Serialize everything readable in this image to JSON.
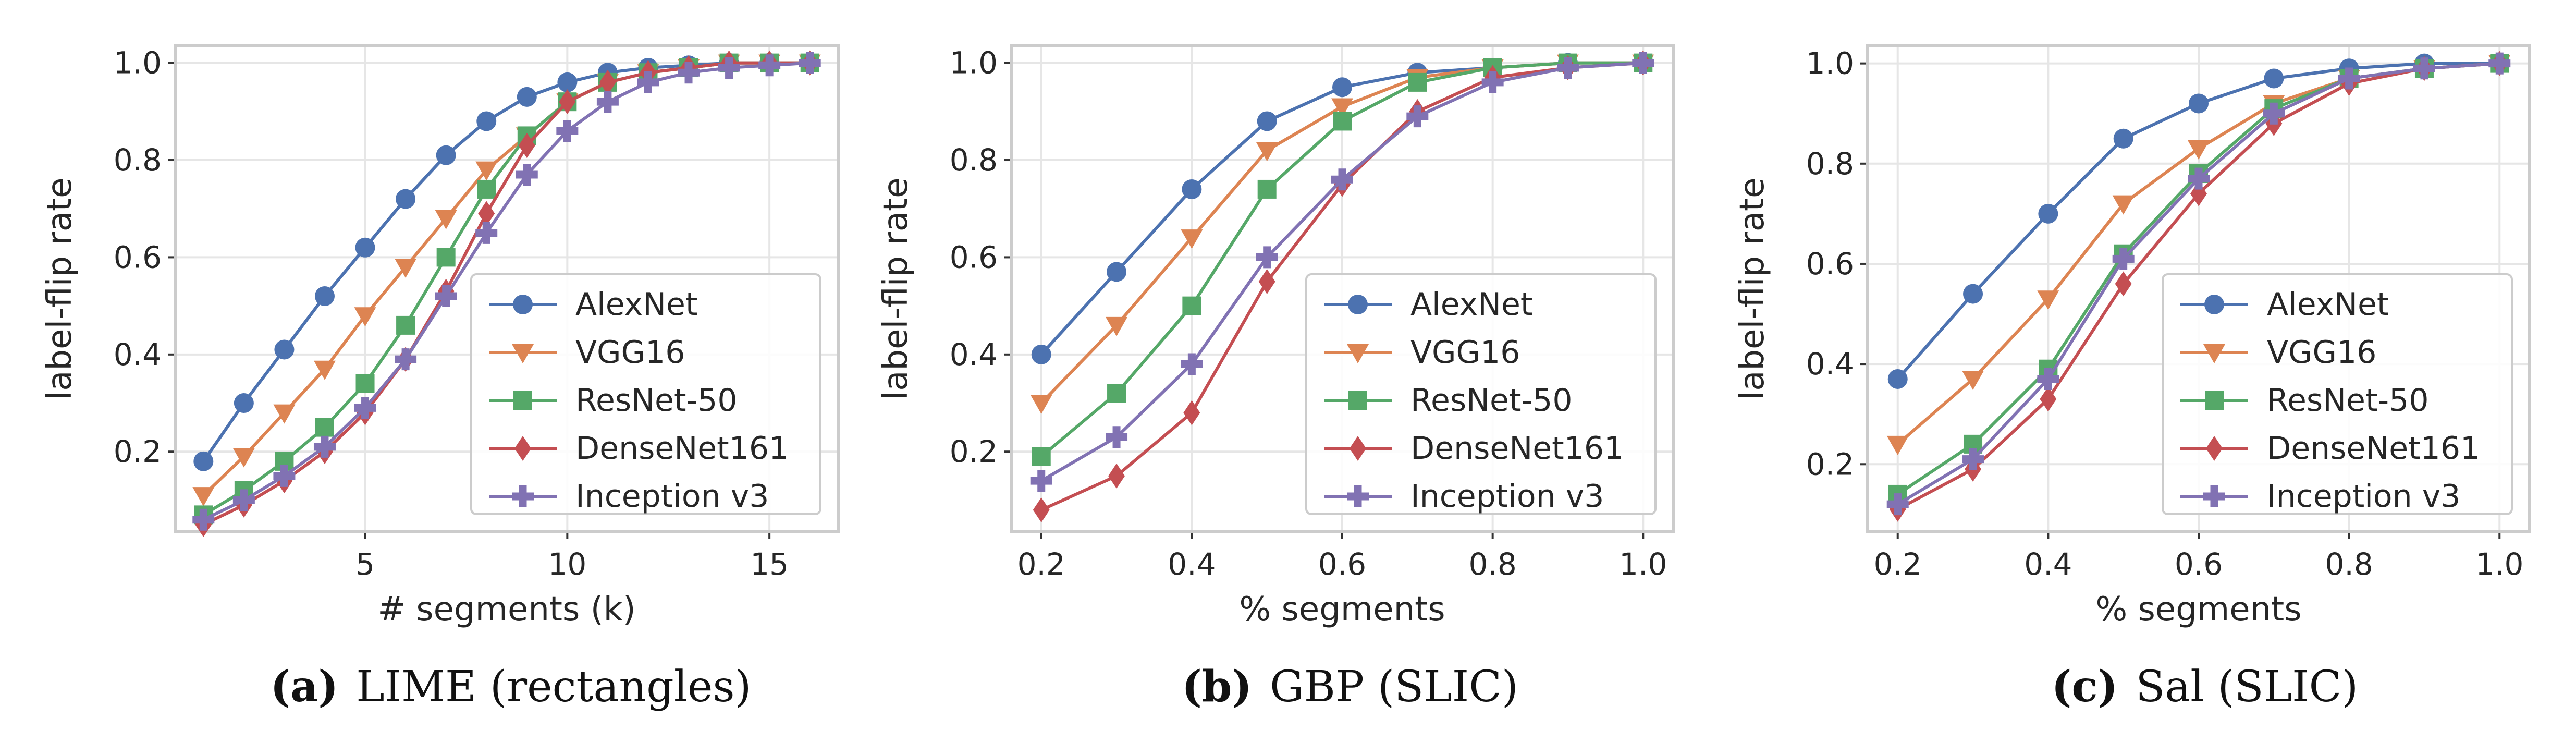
{
  "colors": {
    "AlexNet": "#4c72b0",
    "VGG16": "#dd8452",
    "ResNet-50": "#55a868",
    "DenseNet161": "#c44e52",
    "Inception v3": "#8172b3",
    "axes_frame": "#cccccc",
    "grid": "#e6e6e6"
  },
  "captions": [
    {
      "tag": "(a)",
      "text": "LIME (rectangles)"
    },
    {
      "tag": "(b)",
      "text": "GBP (SLIC)"
    },
    {
      "tag": "(c)",
      "text": "Sal (SLIC)"
    }
  ],
  "chart_data": [
    {
      "type": "line",
      "title": "",
      "xlabel": "# segments (k)",
      "ylabel": "label-flip rate",
      "xlim": [
        0.3,
        16.7
      ],
      "ylim": [
        0.035,
        1.035
      ],
      "xticks": [
        5,
        10,
        15
      ],
      "xtick_labels": [
        "5",
        "10",
        "15"
      ],
      "yticks": [
        0.2,
        0.4,
        0.6,
        0.8,
        1.0
      ],
      "ytick_labels": [
        "0.2",
        "0.4",
        "0.6",
        "0.8",
        "1.0"
      ],
      "grid": true,
      "legend_position": "lower-right",
      "x": [
        1,
        2,
        3,
        4,
        5,
        6,
        7,
        8,
        9,
        10,
        11,
        12,
        13,
        14,
        15,
        16
      ],
      "series": [
        {
          "name": "AlexNet",
          "marker": "circle",
          "values": [
            0.18,
            0.3,
            0.41,
            0.52,
            0.62,
            0.72,
            0.81,
            0.88,
            0.93,
            0.96,
            0.98,
            0.99,
            0.995,
            1.0,
            1.0,
            1.0
          ]
        },
        {
          "name": "VGG16",
          "marker": "triangle-down",
          "values": [
            0.11,
            0.19,
            0.28,
            0.37,
            0.48,
            0.58,
            0.68,
            0.78,
            0.85,
            0.92,
            0.96,
            0.98,
            0.99,
            1.0,
            1.0,
            1.0
          ]
        },
        {
          "name": "ResNet-50",
          "marker": "square",
          "values": [
            0.07,
            0.12,
            0.18,
            0.25,
            0.34,
            0.46,
            0.6,
            0.74,
            0.85,
            0.92,
            0.96,
            0.98,
            0.99,
            1.0,
            1.0,
            1.0
          ]
        },
        {
          "name": "DenseNet161",
          "marker": "diamond",
          "values": [
            0.05,
            0.09,
            0.14,
            0.2,
            0.28,
            0.39,
            0.53,
            0.69,
            0.83,
            0.92,
            0.96,
            0.98,
            0.99,
            1.0,
            1.0,
            1.0
          ]
        },
        {
          "name": "Inception v3",
          "marker": "plus",
          "values": [
            0.06,
            0.1,
            0.15,
            0.21,
            0.29,
            0.39,
            0.52,
            0.65,
            0.77,
            0.86,
            0.92,
            0.96,
            0.98,
            0.99,
            0.995,
            1.0
          ]
        }
      ]
    },
    {
      "type": "line",
      "title": "",
      "xlabel": "% segments",
      "ylabel": "label-flip rate",
      "xlim": [
        0.16,
        1.04
      ],
      "ylim": [
        0.035,
        1.035
      ],
      "xticks": [
        0.2,
        0.4,
        0.6,
        0.8,
        1.0
      ],
      "xtick_labels": [
        "0.2",
        "0.4",
        "0.6",
        "0.8",
        "1.0"
      ],
      "yticks": [
        0.2,
        0.4,
        0.6,
        0.8,
        1.0
      ],
      "ytick_labels": [
        "0.2",
        "0.4",
        "0.6",
        "0.8",
        "1.0"
      ],
      "grid": true,
      "legend_position": "lower-right",
      "x": [
        0.2,
        0.3,
        0.4,
        0.5,
        0.6,
        0.7,
        0.8,
        0.9,
        1.0
      ],
      "series": [
        {
          "name": "AlexNet",
          "marker": "circle",
          "values": [
            0.4,
            0.57,
            0.74,
            0.88,
            0.95,
            0.98,
            0.99,
            1.0,
            1.0
          ]
        },
        {
          "name": "VGG16",
          "marker": "triangle-down",
          "values": [
            0.3,
            0.46,
            0.64,
            0.82,
            0.91,
            0.97,
            0.99,
            1.0,
            1.0
          ]
        },
        {
          "name": "ResNet-50",
          "marker": "square",
          "values": [
            0.19,
            0.32,
            0.5,
            0.74,
            0.88,
            0.96,
            0.99,
            1.0,
            1.0
          ]
        },
        {
          "name": "DenseNet161",
          "marker": "diamond",
          "values": [
            0.08,
            0.15,
            0.28,
            0.55,
            0.75,
            0.9,
            0.97,
            0.99,
            1.0
          ]
        },
        {
          "name": "Inception v3",
          "marker": "plus",
          "values": [
            0.14,
            0.23,
            0.38,
            0.6,
            0.76,
            0.89,
            0.96,
            0.99,
            1.0
          ]
        }
      ]
    },
    {
      "type": "line",
      "title": "",
      "xlabel": "% segments",
      "ylabel": "label-flip rate",
      "xlim": [
        0.16,
        1.04
      ],
      "ylim": [
        0.065,
        1.035
      ],
      "xticks": [
        0.2,
        0.4,
        0.6,
        0.8,
        1.0
      ],
      "xtick_labels": [
        "0.2",
        "0.4",
        "0.6",
        "0.8",
        "1.0"
      ],
      "yticks": [
        0.2,
        0.4,
        0.6,
        0.8,
        1.0
      ],
      "ytick_labels": [
        "0.2",
        "0.4",
        "0.6",
        "0.8",
        "1.0"
      ],
      "grid": true,
      "legend_position": "lower-right",
      "x": [
        0.2,
        0.3,
        0.4,
        0.5,
        0.6,
        0.7,
        0.8,
        0.9,
        1.0
      ],
      "series": [
        {
          "name": "AlexNet",
          "marker": "circle",
          "values": [
            0.37,
            0.54,
            0.7,
            0.85,
            0.92,
            0.97,
            0.99,
            1.0,
            1.0
          ]
        },
        {
          "name": "VGG16",
          "marker": "triangle-down",
          "values": [
            0.24,
            0.37,
            0.53,
            0.72,
            0.83,
            0.92,
            0.97,
            0.99,
            1.0
          ]
        },
        {
          "name": "ResNet-50",
          "marker": "square",
          "values": [
            0.14,
            0.24,
            0.39,
            0.62,
            0.78,
            0.91,
            0.97,
            0.99,
            1.0
          ]
        },
        {
          "name": "DenseNet161",
          "marker": "diamond",
          "values": [
            0.11,
            0.19,
            0.33,
            0.56,
            0.74,
            0.88,
            0.96,
            0.99,
            1.0
          ]
        },
        {
          "name": "Inception v3",
          "marker": "plus",
          "values": [
            0.12,
            0.21,
            0.37,
            0.61,
            0.77,
            0.9,
            0.97,
            0.99,
            1.0
          ]
        }
      ]
    }
  ]
}
